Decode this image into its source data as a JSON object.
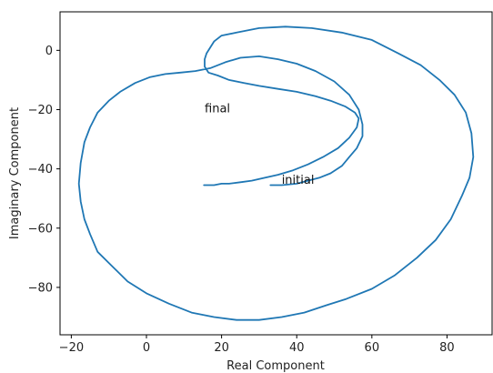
{
  "chart_data": {
    "type": "line",
    "title": "",
    "xlabel": "Real Component",
    "ylabel": "Imaginary Component",
    "xlim": [
      -23,
      92
    ],
    "ylim": [
      -96,
      13
    ],
    "xticks": [
      -20,
      0,
      20,
      40,
      60,
      80
    ],
    "yticks": [
      0,
      -20,
      -40,
      -60,
      -80
    ],
    "grid": false,
    "legend": "none",
    "color": "#1f77b4",
    "annotations": [
      {
        "text": "initial",
        "x": 36,
        "y": -45
      },
      {
        "text": "final",
        "x": 15.5,
        "y": -21
      }
    ],
    "series": [
      {
        "x": [
          33,
          36,
          40,
          43,
          46,
          49,
          52,
          54,
          56,
          57.5,
          57.5,
          56.5,
          54,
          50,
          45,
          40,
          35,
          30,
          25,
          21,
          17,
          13,
          9,
          5,
          1,
          -3,
          -7,
          -10,
          -13,
          -15,
          -16.5,
          -17.5,
          -18,
          -17.5,
          -16.5,
          -15,
          -13,
          -9,
          -5,
          0,
          6,
          12,
          18,
          24,
          30,
          36,
          42,
          48,
          53,
          60,
          66,
          72,
          77,
          81,
          84,
          86,
          87,
          86.5,
          85,
          82,
          78,
          73,
          67,
          60,
          52,
          44,
          37,
          30,
          24,
          20,
          18,
          17,
          16,
          15.5,
          15.5,
          16.5,
          19,
          22,
          26,
          30,
          35,
          40,
          45,
          49,
          53,
          55.5,
          56.5,
          56,
          54,
          51,
          47,
          43,
          39,
          35,
          31.5,
          28,
          25,
          22,
          20,
          18,
          16.5,
          15.5,
          15.3
        ],
        "y": [
          -45.5,
          -45.5,
          -45,
          -44,
          -43,
          -41.5,
          -39,
          -36,
          -33,
          -29,
          -25,
          -20,
          -15,
          -10.5,
          -7,
          -4.5,
          -3,
          -2,
          -2.5,
          -4,
          -6,
          -7,
          -7.5,
          -8,
          -9,
          -11,
          -14,
          -17,
          -21,
          -26,
          -31,
          -38,
          -45,
          -51,
          -57,
          -62,
          -68,
          -73,
          -78,
          -82,
          -85.5,
          -88.5,
          -90,
          -91,
          -91,
          -90,
          -88.5,
          -86,
          -84,
          -80.5,
          -76,
          -70,
          -64,
          -57,
          -49,
          -43,
          -36,
          -28,
          -21,
          -15,
          -10,
          -5,
          -1,
          3.5,
          6,
          7.5,
          8,
          7.5,
          6,
          5,
          3,
          1,
          -1,
          -3,
          -5.5,
          -7.5,
          -8.5,
          -10,
          -11,
          -12,
          -13,
          -14,
          -15.5,
          -17,
          -19,
          -21,
          -23,
          -26,
          -29.5,
          -33,
          -36,
          -38.5,
          -40.5,
          -42,
          -43,
          -44,
          -44.5,
          -45,
          -45,
          -45.5,
          -45.5,
          -45.5,
          -45.5
        ]
      }
    ]
  }
}
